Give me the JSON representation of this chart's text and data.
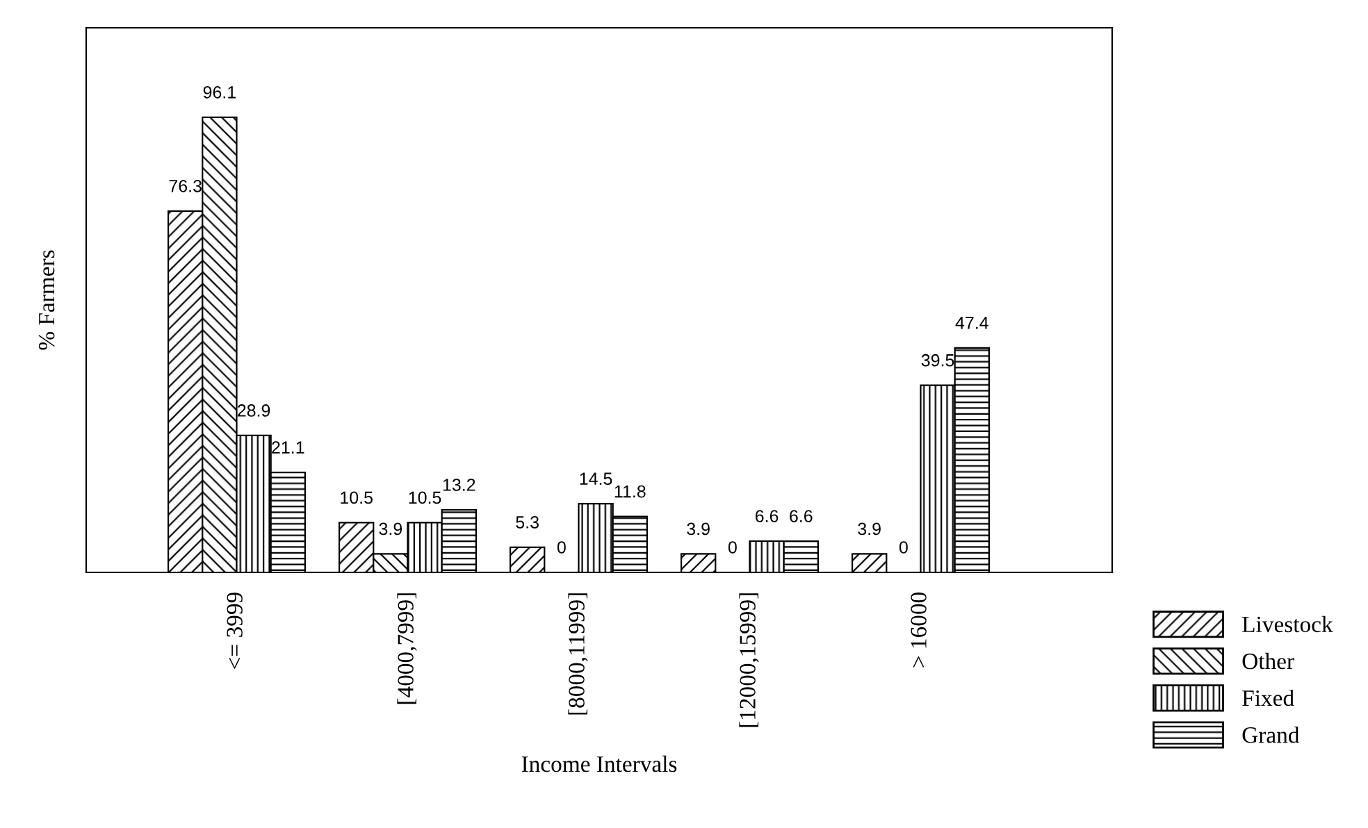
{
  "chart_data": {
    "type": "bar",
    "xlabel": "Income Intervals",
    "ylabel": "% Farmers",
    "categories": [
      "<= 3999",
      "[4000,7999]",
      "[8000,11999]",
      "[12000,15999]",
      "> 16000"
    ],
    "series": [
      {
        "name": "Livestock",
        "color": "#000000",
        "values": [
          76.3,
          10.5,
          5.3,
          3.9,
          3.9
        ]
      },
      {
        "name": "Other",
        "color": "#000000",
        "values": [
          96.1,
          3.9,
          0,
          0,
          0
        ]
      },
      {
        "name": "Fixed",
        "color": "#000000",
        "values": [
          28.9,
          10.5,
          14.5,
          6.6,
          39.5
        ]
      },
      {
        "name": "Grand",
        "color": "#000000",
        "values": [
          21.1,
          13.2,
          11.8,
          6.6,
          47.4
        ]
      }
    ],
    "ylim": [
      0,
      115
    ],
    "data_labels": true,
    "legend": "bottom right",
    "grid": false,
    "tick_labels": "x"
  }
}
